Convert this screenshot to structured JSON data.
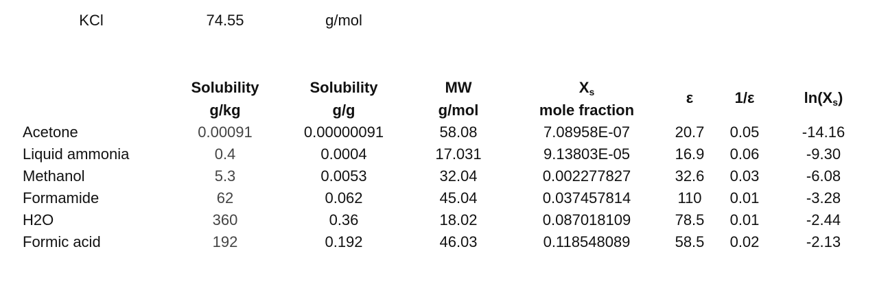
{
  "top": {
    "compound": "KCl",
    "mw_value": "74.55",
    "mw_unit": "g/mol"
  },
  "headers": {
    "sol_gkg_title": "Solubility",
    "sol_gkg_unit": "g/kg",
    "sol_gg_title": "Solubility",
    "sol_gg_unit": "g/g",
    "mw_title": "MW",
    "mw_unit": "g/mol",
    "xs_main": "X",
    "xs_sub": "s",
    "xs_unit": "mole fraction",
    "eps": "ε",
    "inv_eps": "1/ε",
    "ln_prefix": "ln(X",
    "ln_sub": "s",
    "ln_suffix": ")"
  },
  "rows": [
    {
      "solvent": "Acetone",
      "sol_gkg": "0.00091",
      "sol_gg": "0.00000091",
      "mw": "58.08",
      "xs": "7.08958E-07",
      "eps": "20.7",
      "inv_eps": "0.05",
      "ln_xs": "-14.16"
    },
    {
      "solvent": "Liquid ammonia",
      "sol_gkg": "0.4",
      "sol_gg": "0.0004",
      "mw": "17.031",
      "xs": "9.13803E-05",
      "eps": "16.9",
      "inv_eps": "0.06",
      "ln_xs": "-9.30"
    },
    {
      "solvent": "Methanol",
      "sol_gkg": "5.3",
      "sol_gg": "0.0053",
      "mw": "32.04",
      "xs": "0.002277827",
      "eps": "32.6",
      "inv_eps": "0.03",
      "ln_xs": "-6.08"
    },
    {
      "solvent": "Formamide",
      "sol_gkg": "62",
      "sol_gg": "0.062",
      "mw": "45.04",
      "xs": "0.037457814",
      "eps": "110",
      "inv_eps": "0.01",
      "ln_xs": "-3.28"
    },
    {
      "solvent": "H2O",
      "sol_gkg": "360",
      "sol_gg": "0.36",
      "mw": "18.02",
      "xs": "0.087018109",
      "eps": "78.5",
      "inv_eps": "0.01",
      "ln_xs": "-2.44"
    },
    {
      "solvent": "Formic acid",
      "sol_gkg": "192",
      "sol_gg": "0.192",
      "mw": "46.03",
      "xs": "0.118548089",
      "eps": "58.5",
      "inv_eps": "0.02",
      "ln_xs": "-2.13"
    }
  ]
}
